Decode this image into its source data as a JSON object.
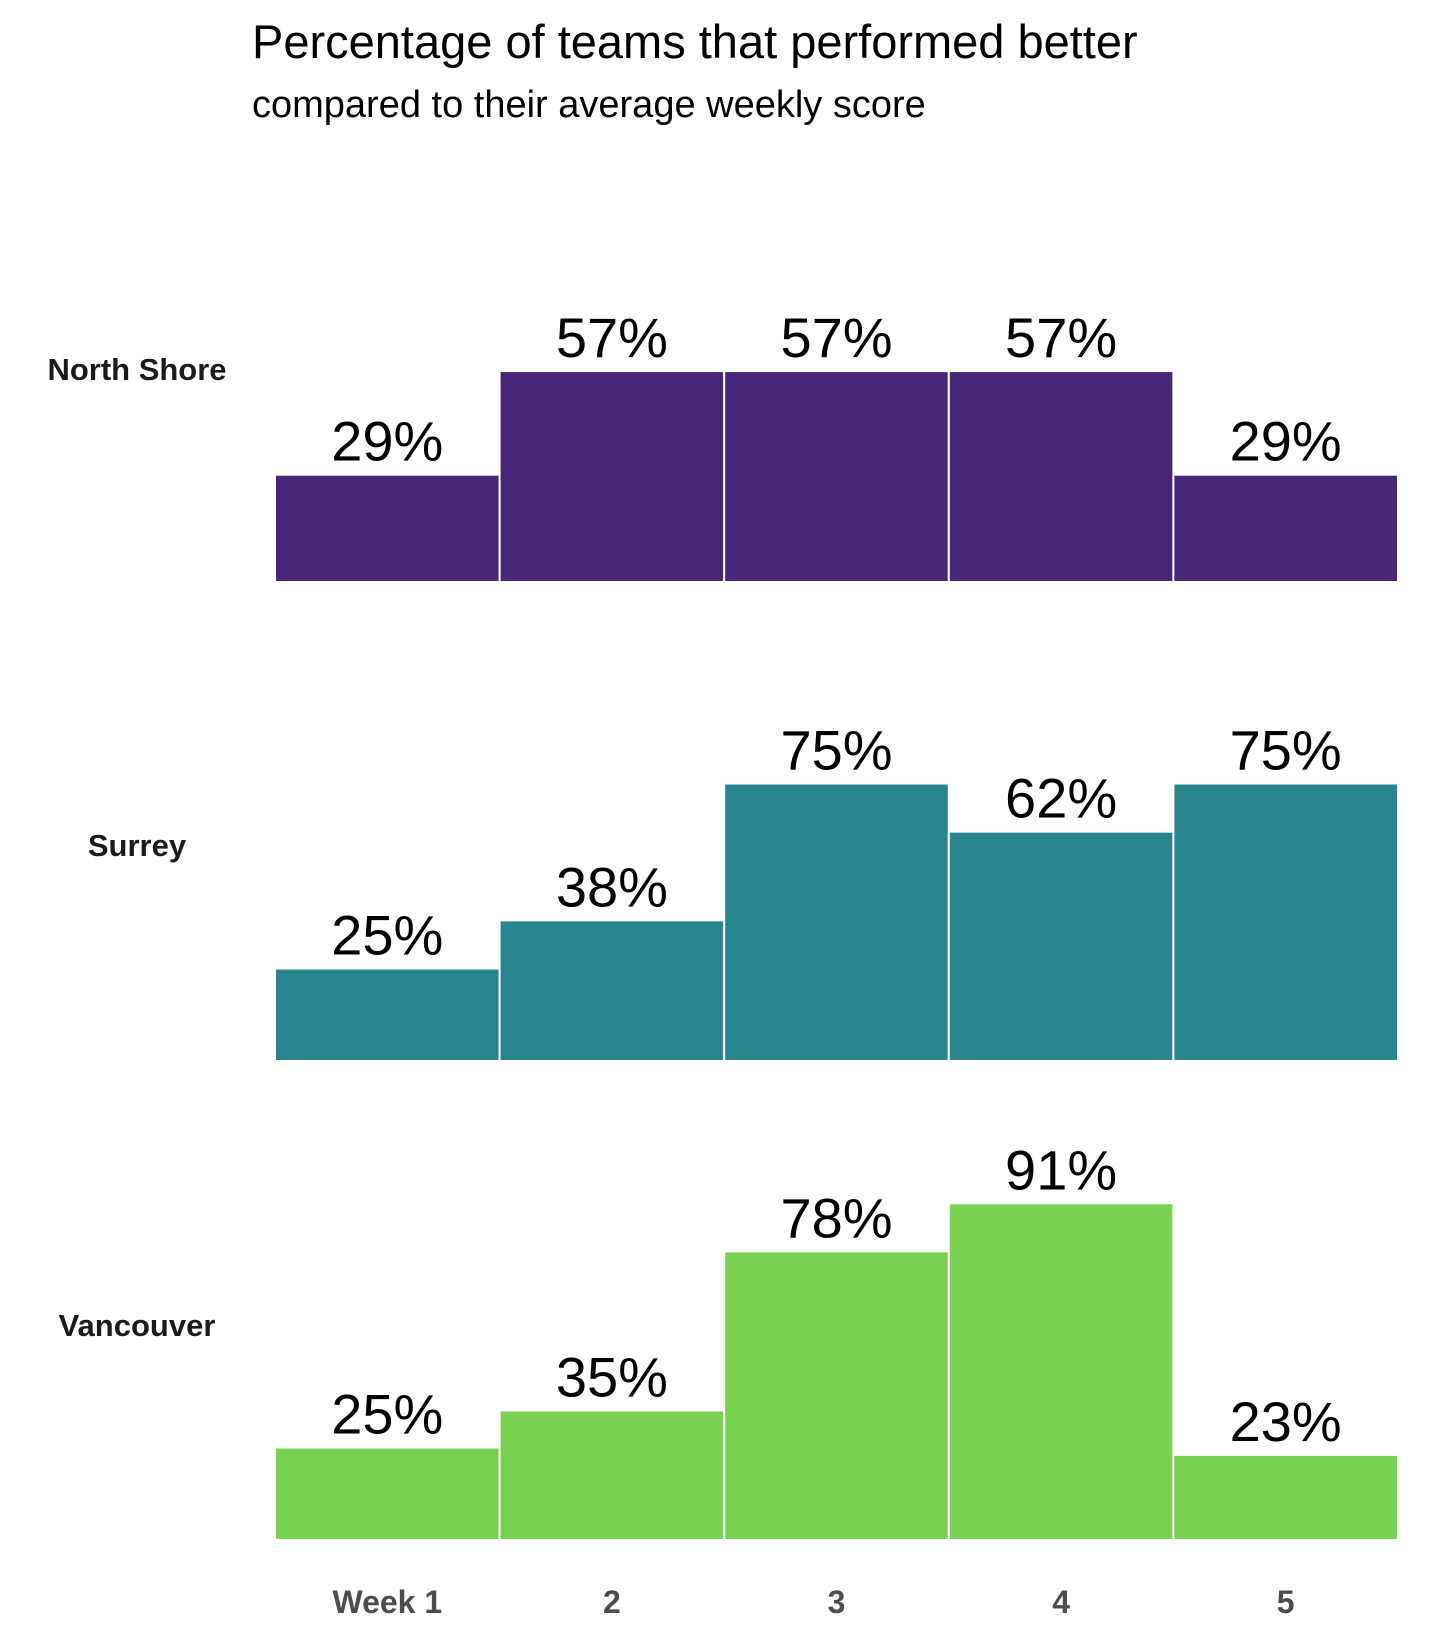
{
  "chart_data": {
    "type": "bar",
    "title": "Percentage of teams that performed better",
    "subtitle": "compared to their average weekly score",
    "categories": [
      "Week 1",
      "2",
      "3",
      "4",
      "5"
    ],
    "value_format": "percent",
    "ylim": [
      0,
      100
    ],
    "grid": false,
    "legend": "none",
    "series": [
      {
        "name": "North Shore",
        "color": "#482677",
        "values": [
          29,
          57,
          57,
          57,
          29
        ]
      },
      {
        "name": "Surrey",
        "color": "#29858d",
        "values": [
          25,
          38,
          75,
          62,
          75
        ]
      },
      {
        "name": "Vancouver",
        "color": "#7ad151",
        "values": [
          25,
          35,
          78,
          91,
          23
        ]
      }
    ]
  }
}
